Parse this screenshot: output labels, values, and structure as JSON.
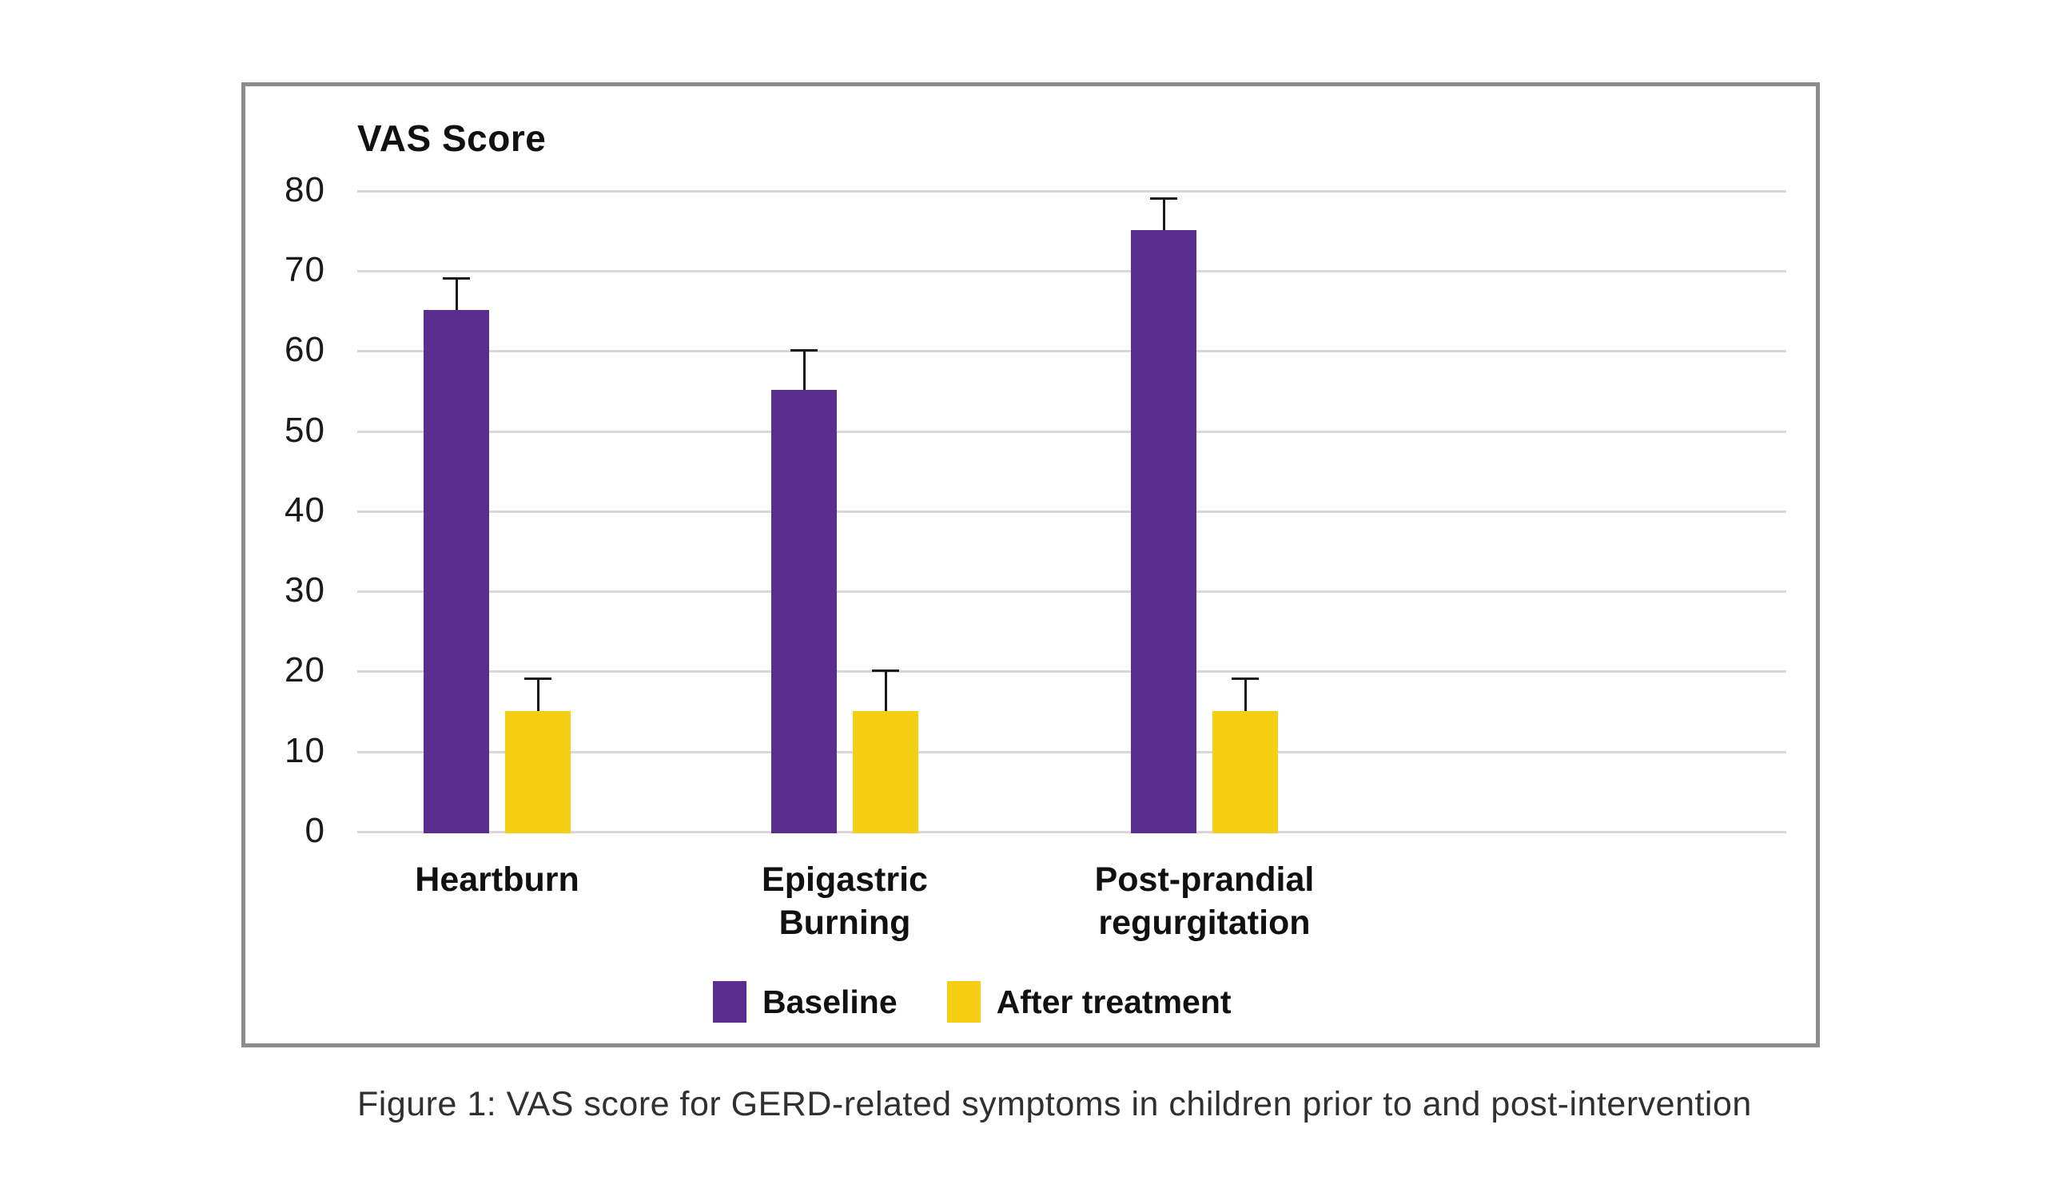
{
  "chart_data": {
    "type": "bar",
    "title": "VAS Score",
    "categories": [
      [
        "Heartburn"
      ],
      [
        "Epigastric",
        "Burning"
      ],
      [
        "Post-prandial",
        "regurgitation"
      ]
    ],
    "series": [
      {
        "name": "Baseline",
        "color": "#5b2d8e",
        "values": [
          65,
          55,
          75
        ],
        "error_plus": [
          4,
          5,
          4
        ]
      },
      {
        "name": "After treatment",
        "color": "#f6ce13",
        "values": [
          15,
          15,
          15
        ],
        "error_plus": [
          4,
          5,
          4
        ]
      }
    ],
    "ylim": [
      0,
      80
    ],
    "yticks": [
      0,
      10,
      20,
      30,
      40,
      50,
      60,
      70,
      80
    ],
    "ylabel": "VAS Score",
    "xlabel": "",
    "grid": true,
    "error_bars": true,
    "legend_position": "bottom"
  },
  "caption": "Figure 1: VAS score for GERD-related symptoms in children prior to and post-intervention",
  "style": {
    "baseline_color": "#5b2d8e",
    "after_treatment_color": "#f6ce13",
    "gridline_color": "#d8d8d8",
    "frame_border_color": "#8c8c8c",
    "error_bar_color": "#1a1a1a"
  }
}
